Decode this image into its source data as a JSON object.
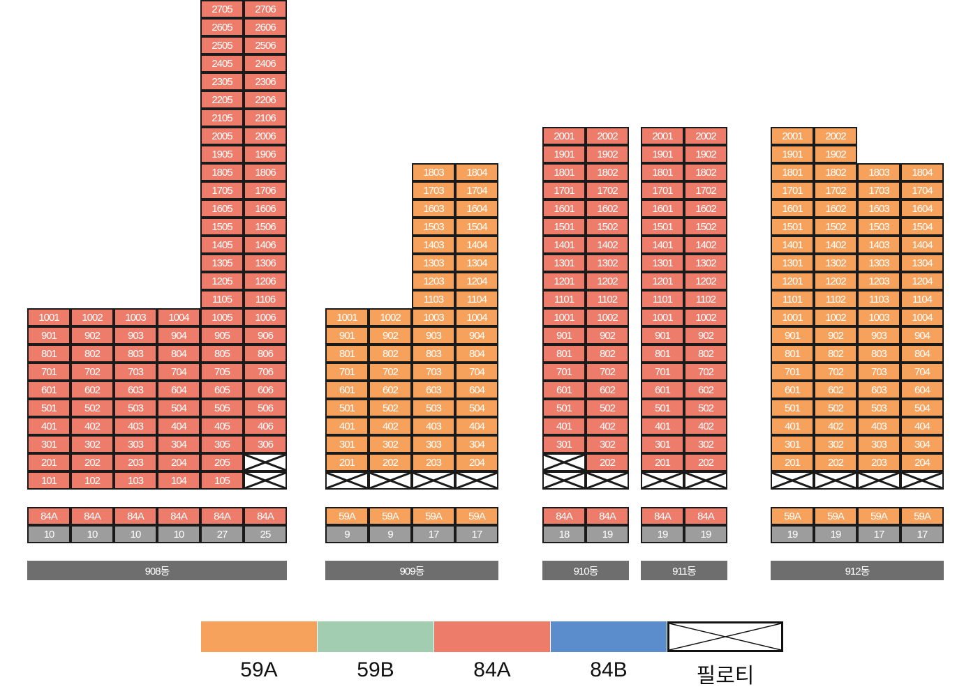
{
  "colors": {
    "59A": "#f6a25c",
    "59B": "#a3cdb0",
    "84A": "#ee7c6b",
    "84B": "#5b8ccc",
    "pilotis": "#ffffff"
  },
  "buildings": [
    {
      "id": "908",
      "name": "908동",
      "type_row": [
        "84A",
        "84A",
        "84A",
        "84A",
        "84A",
        "84A"
      ],
      "count_row": [
        "10",
        "10",
        "10",
        "10",
        "27",
        "25"
      ],
      "column_groups": [
        {
          "cols": [
            1,
            2,
            3,
            4
          ],
          "type": "84A",
          "floors": [
            10,
            9,
            8,
            7,
            6,
            5,
            4,
            3,
            2,
            1
          ],
          "pilotis": []
        },
        {
          "cols": [
            5
          ],
          "type": "84A",
          "floors": [
            27,
            26,
            25,
            24,
            23,
            22,
            21,
            20,
            19,
            18,
            17,
            16,
            15,
            14,
            13,
            12,
            11,
            10,
            9,
            8,
            7,
            6,
            5,
            4,
            3,
            2,
            1
          ],
          "pilotis": []
        },
        {
          "cols": [
            6
          ],
          "type": "84A",
          "floors": [
            27,
            26,
            25,
            24,
            23,
            22,
            21,
            20,
            19,
            18,
            17,
            16,
            15,
            14,
            13,
            12,
            11,
            10,
            9,
            8,
            7,
            6,
            5,
            4,
            3
          ],
          "pilotis": [
            2,
            1
          ]
        }
      ]
    },
    {
      "id": "909",
      "name": "909동",
      "type_row": [
        "59A",
        "59A",
        "59A",
        "59A"
      ],
      "count_row": [
        "9",
        "9",
        "17",
        "17"
      ],
      "column_groups": [
        {
          "cols": [
            1,
            2
          ],
          "type": "59A",
          "floors": [
            10,
            9,
            8,
            7,
            6,
            5,
            4,
            3,
            2
          ],
          "pilotis": [
            1
          ]
        },
        {
          "cols": [
            3,
            4
          ],
          "type": "59A",
          "floors": [
            18,
            17,
            16,
            15,
            14,
            13,
            12,
            11,
            10,
            9,
            8,
            7,
            6,
            5,
            4,
            3,
            2
          ],
          "pilotis": [
            1
          ]
        }
      ]
    },
    {
      "id": "910",
      "name": "910동",
      "type_row": [
        "84A",
        "84A"
      ],
      "count_row": [
        "18",
        "19"
      ],
      "column_groups": [
        {
          "cols": [
            1
          ],
          "type": "84A",
          "floors": [
            20,
            19,
            18,
            17,
            16,
            15,
            14,
            13,
            12,
            11,
            10,
            9,
            8,
            7,
            6,
            5,
            4,
            3
          ],
          "pilotis": [
            2,
            1
          ]
        },
        {
          "cols": [
            2
          ],
          "type": "84A",
          "floors": [
            20,
            19,
            18,
            17,
            16,
            15,
            14,
            13,
            12,
            11,
            10,
            9,
            8,
            7,
            6,
            5,
            4,
            3,
            2
          ],
          "pilotis": [
            1
          ]
        }
      ]
    },
    {
      "id": "911",
      "name": "911동",
      "type_row": [
        "84A",
        "84A"
      ],
      "count_row": [
        "19",
        "19"
      ],
      "column_groups": [
        {
          "cols": [
            1,
            2
          ],
          "type": "84A",
          "floors": [
            20,
            19,
            18,
            17,
            16,
            15,
            14,
            13,
            12,
            11,
            10,
            9,
            8,
            7,
            6,
            5,
            4,
            3,
            2
          ],
          "pilotis": [
            1
          ]
        }
      ]
    },
    {
      "id": "912",
      "name": "912동",
      "type_row": [
        "59A",
        "59A",
        "59A",
        "59A"
      ],
      "count_row": [
        "19",
        "19",
        "17",
        "17"
      ],
      "column_groups": [
        {
          "cols": [
            1,
            2
          ],
          "type": "59A",
          "floors": [
            20,
            19,
            18,
            17,
            16,
            15,
            14,
            13,
            12,
            11,
            10,
            9,
            8,
            7,
            6,
            5,
            4,
            3,
            2
          ],
          "pilotis": [
            1
          ]
        },
        {
          "cols": [
            3,
            4
          ],
          "type": "59A",
          "floors": [
            18,
            17,
            16,
            15,
            14,
            13,
            12,
            11,
            10,
            9,
            8,
            7,
            6,
            5,
            4,
            3,
            2
          ],
          "pilotis": [
            1
          ]
        }
      ]
    }
  ],
  "legend": [
    {
      "key": "59A",
      "label": "59A"
    },
    {
      "key": "59B",
      "label": "59B"
    },
    {
      "key": "84A",
      "label": "84A"
    },
    {
      "key": "84B",
      "label": "84B"
    },
    {
      "key": "pilotis",
      "label": "필로티"
    }
  ]
}
